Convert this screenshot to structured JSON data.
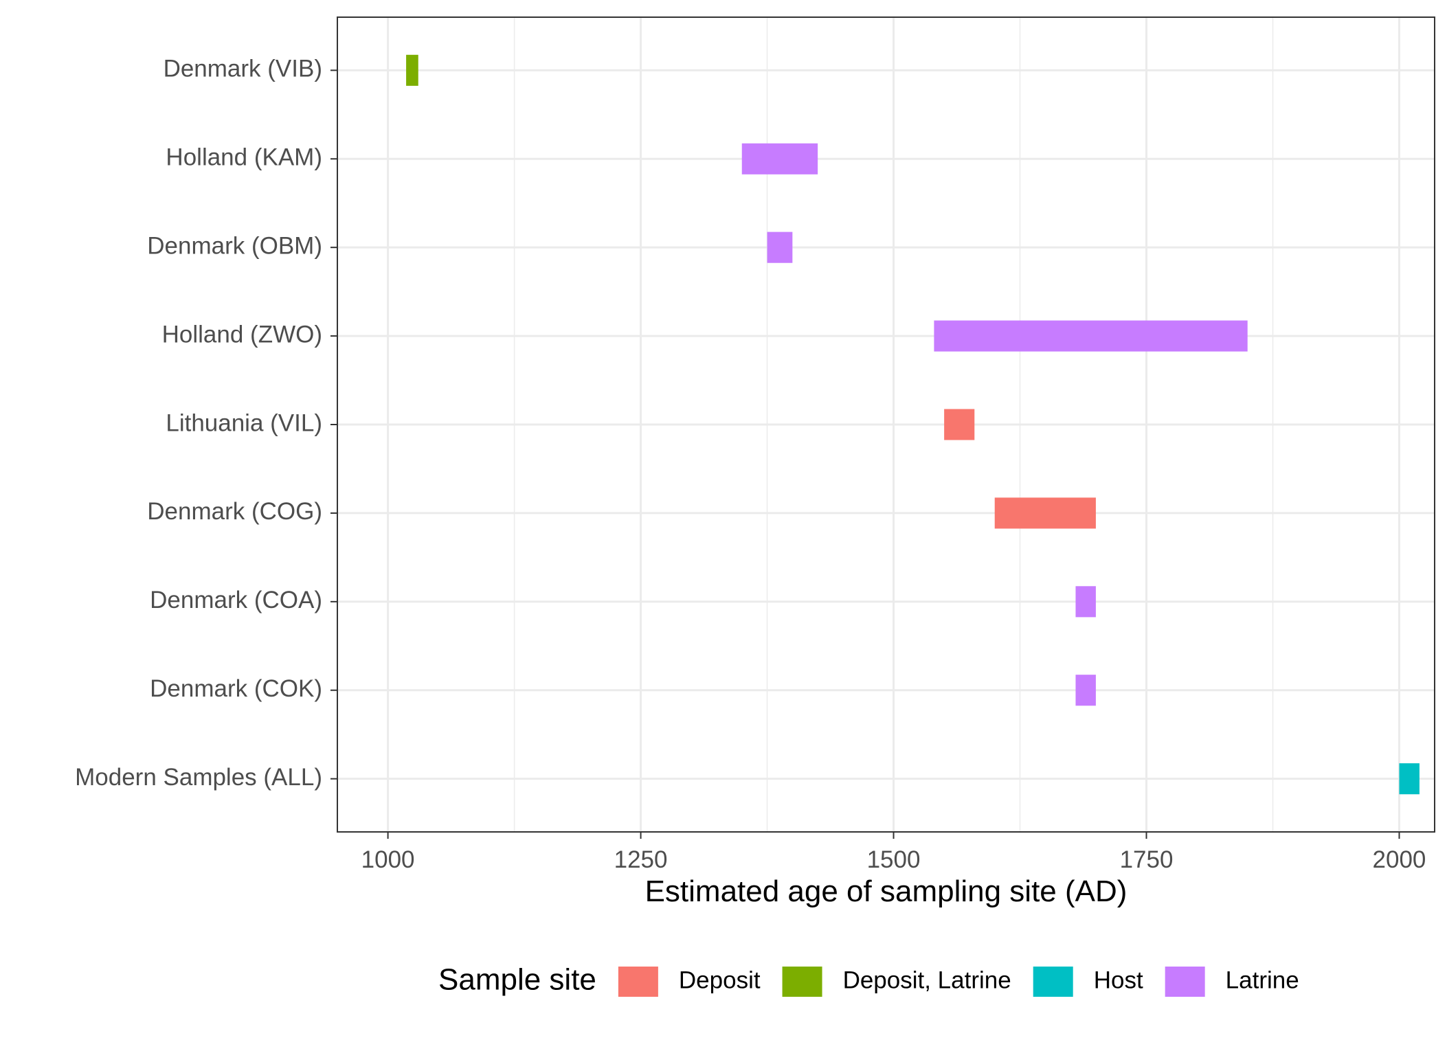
{
  "chart_data": {
    "type": "bar",
    "orientation": "horizontal-range",
    "title": "",
    "xlabel": "Estimated age of sampling site (AD)",
    "ylabel": "",
    "xlim": [
      950,
      2035
    ],
    "x_ticks": [
      1000,
      1250,
      1500,
      1750,
      2000
    ],
    "x_tick_labels": [
      "1000",
      "1250",
      "1500",
      "1750",
      "2000"
    ],
    "grid": true,
    "legend_position": "bottom",
    "legend": {
      "title": "Sample site",
      "entries": [
        {
          "label": "Deposit",
          "color": "#F8766D"
        },
        {
          "label": "Deposit, Latrine",
          "color": "#7CAE00"
        },
        {
          "label": "Host",
          "color": "#00BFC4"
        },
        {
          "label": "Latrine",
          "color": "#C77CFF"
        }
      ]
    },
    "categories": [
      "Denmark (VIB)",
      "Holland (KAM)",
      "Denmark (OBM)",
      "Holland (ZWO)",
      "Lithuania (VIL)",
      "Denmark (COG)",
      "Denmark (COA)",
      "Denmark (COK)",
      "Modern Samples (ALL)"
    ],
    "bars": [
      {
        "category": "Denmark (VIB)",
        "start": 1018,
        "end": 1030,
        "group": "Deposit, Latrine"
      },
      {
        "category": "Holland (KAM)",
        "start": 1350,
        "end": 1425,
        "group": "Latrine"
      },
      {
        "category": "Denmark (OBM)",
        "start": 1375,
        "end": 1400,
        "group": "Latrine"
      },
      {
        "category": "Holland (ZWO)",
        "start": 1540,
        "end": 1850,
        "group": "Latrine"
      },
      {
        "category": "Lithuania (VIL)",
        "start": 1550,
        "end": 1580,
        "group": "Deposit"
      },
      {
        "category": "Denmark (COG)",
        "start": 1600,
        "end": 1700,
        "group": "Deposit"
      },
      {
        "category": "Denmark (COA)",
        "start": 1680,
        "end": 1700,
        "group": "Latrine"
      },
      {
        "category": "Denmark (COK)",
        "start": 1680,
        "end": 1700,
        "group": "Latrine"
      },
      {
        "category": "Modern Samples (ALL)",
        "start": 2000,
        "end": 2020,
        "group": "Host"
      }
    ]
  }
}
